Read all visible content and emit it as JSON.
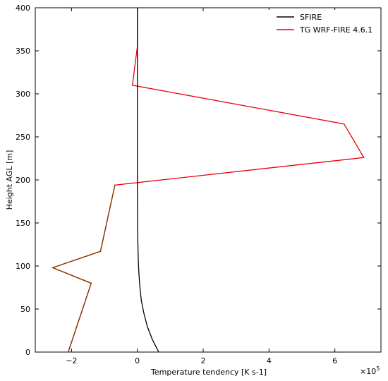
{
  "chart_data": {
    "type": "line",
    "xlabel": "Temperature tendency [K s-1]",
    "ylabel": "Height AGL [m]",
    "x_scale_label": "×10",
    "x_scale_exponent": "5",
    "xlim": [
      -3.1,
      7.4
    ],
    "ylim": [
      0,
      400
    ],
    "x_ticks": [
      -2,
      0,
      2,
      4,
      6
    ],
    "x_tick_labels": [
      "−2",
      "0",
      "2",
      "4",
      "6"
    ],
    "y_ticks": [
      0,
      50,
      100,
      150,
      200,
      250,
      300,
      350,
      400
    ],
    "y_tick_labels": [
      "0",
      "50",
      "100",
      "150",
      "200",
      "250",
      "300",
      "350",
      "400"
    ],
    "grid": false,
    "legend_position": "top-right",
    "series": [
      {
        "name": "SFIRE",
        "color": "#000000",
        "x": [
          0.65,
          0.45,
          0.3,
          0.2,
          0.12,
          0.08,
          0.05,
          0.03,
          0.02,
          0.01,
          0.005,
          0.0,
          0.0,
          0.0
        ],
        "y": [
          0,
          15,
          30,
          45,
          60,
          75,
          90,
          105,
          120,
          140,
          170,
          200,
          300,
          400
        ]
      },
      {
        "name": "TG WRF-FIRE 4.6.1",
        "color": "#e8000b",
        "x": [
          -2.1,
          -1.4,
          -2.57,
          -1.12,
          -0.68,
          6.88,
          6.28,
          -0.15,
          0.0,
          0.0
        ],
        "y": [
          0,
          80,
          98,
          117,
          194,
          226,
          265,
          310,
          355,
          400
        ]
      }
    ],
    "overlap_segment": {
      "color": "#7a3a00",
      "x": [
        -2.1,
        -1.4,
        -2.57,
        -1.12,
        -0.68
      ],
      "y": [
        0,
        80,
        98,
        117,
        194
      ]
    }
  }
}
